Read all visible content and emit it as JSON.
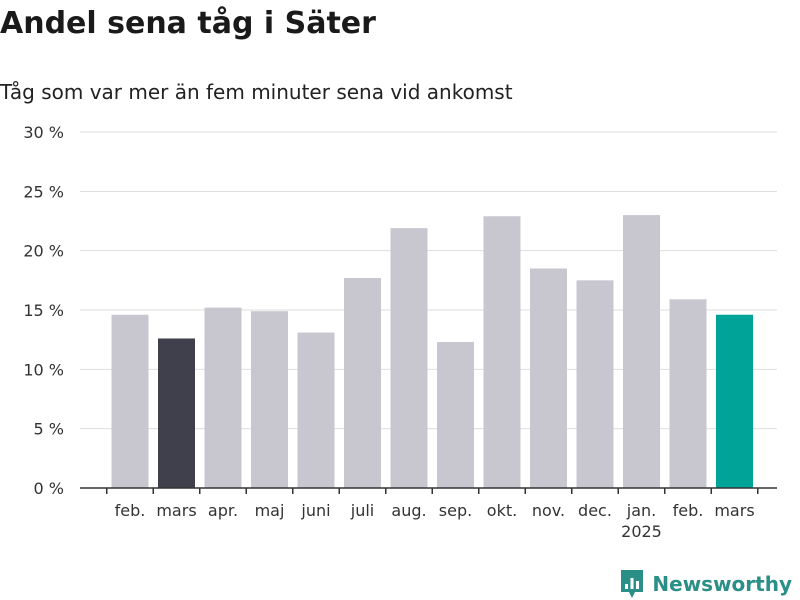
{
  "title": "Andel sena tåg i Säter",
  "subtitle": "Tåg som var mer än fem minuter sena vid ankomst",
  "brand": {
    "name": "Newsworthy",
    "color": "#2a8f86",
    "icon": "newsworthy-logo-icon"
  },
  "colors": {
    "default": "#c8c7d0",
    "highlight_start": "#403f4c",
    "highlight_end": "#00a398",
    "grid": "#dedede",
    "axis": "#333333"
  },
  "chart_data": {
    "type": "bar",
    "title": "Andel sena tåg i Säter",
    "subtitle": "Tåg som var mer än fem minuter sena vid ankomst",
    "xlabel": "",
    "ylabel": "",
    "categories": [
      "feb.",
      "mars",
      "apr.",
      "maj",
      "juni",
      "juli",
      "aug.",
      "sep.",
      "okt.",
      "nov.",
      "dec.",
      "jan.",
      "feb.",
      "mars"
    ],
    "year_labels": [
      "",
      "",
      "",
      "",
      "",
      "",
      "",
      "",
      "",
      "",
      "",
      "2025",
      "",
      ""
    ],
    "values": [
      14.6,
      12.6,
      15.2,
      14.9,
      13.1,
      17.7,
      21.9,
      12.3,
      22.9,
      18.5,
      17.5,
      23.0,
      15.9,
      14.6
    ],
    "highlight": [
      "none",
      "start",
      "none",
      "none",
      "none",
      "none",
      "none",
      "none",
      "none",
      "none",
      "none",
      "none",
      "none",
      "end"
    ],
    "ylim": [
      0,
      30
    ],
    "yticks": [
      0,
      5,
      10,
      15,
      20,
      25,
      30
    ],
    "ytick_labels": [
      "0 %",
      "5 %",
      "10 %",
      "15 %",
      "20 %",
      "25 %",
      "30 %"
    ],
    "grid": true,
    "legend": "none"
  }
}
